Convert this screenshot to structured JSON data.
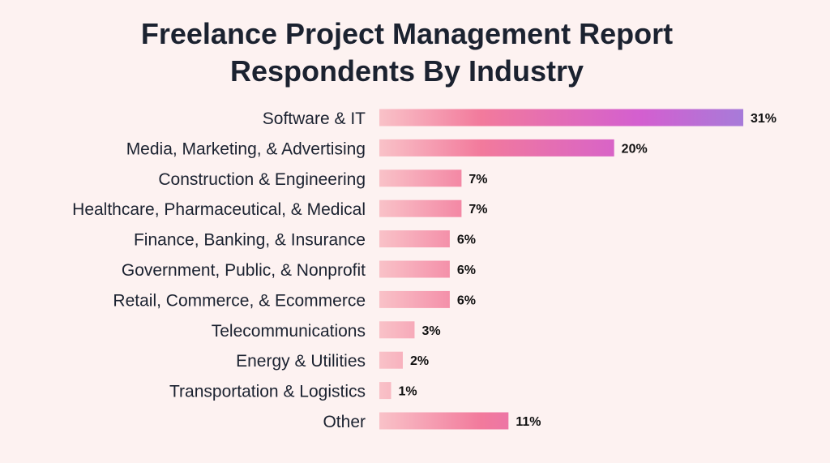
{
  "chart_data": {
    "type": "bar",
    "orientation": "horizontal",
    "title": "Freelance Project Management Report",
    "subtitle": "Respondents By Industry",
    "xlabel": "",
    "ylabel": "",
    "categories": [
      "Software & IT",
      "Media, Marketing, & Advertising",
      "Construction & Engineering",
      "Healthcare, Pharmaceutical, & Medical",
      "Finance, Banking, & Insurance",
      "Government, Public, & Nonprofit",
      "Retail, Commerce, & Ecommerce",
      "Telecommunications",
      "Energy & Utilities",
      "Transportation & Logistics",
      "Other"
    ],
    "values": [
      31,
      20,
      7,
      7,
      6,
      6,
      6,
      3,
      2,
      1,
      11
    ],
    "value_labels": [
      "31%",
      "20%",
      "7%",
      "7%",
      "6%",
      "6%",
      "6%",
      "3%",
      "2%",
      "1%",
      "11%"
    ],
    "xlim": [
      0,
      31
    ],
    "grid": false,
    "legend": "none",
    "colors": {
      "gradient": [
        "#f9c2c8",
        "#f27a9c",
        "#d35fd0",
        "#a77bd9"
      ],
      "background": "#fdf2f1",
      "text": "#1b2230"
    }
  }
}
